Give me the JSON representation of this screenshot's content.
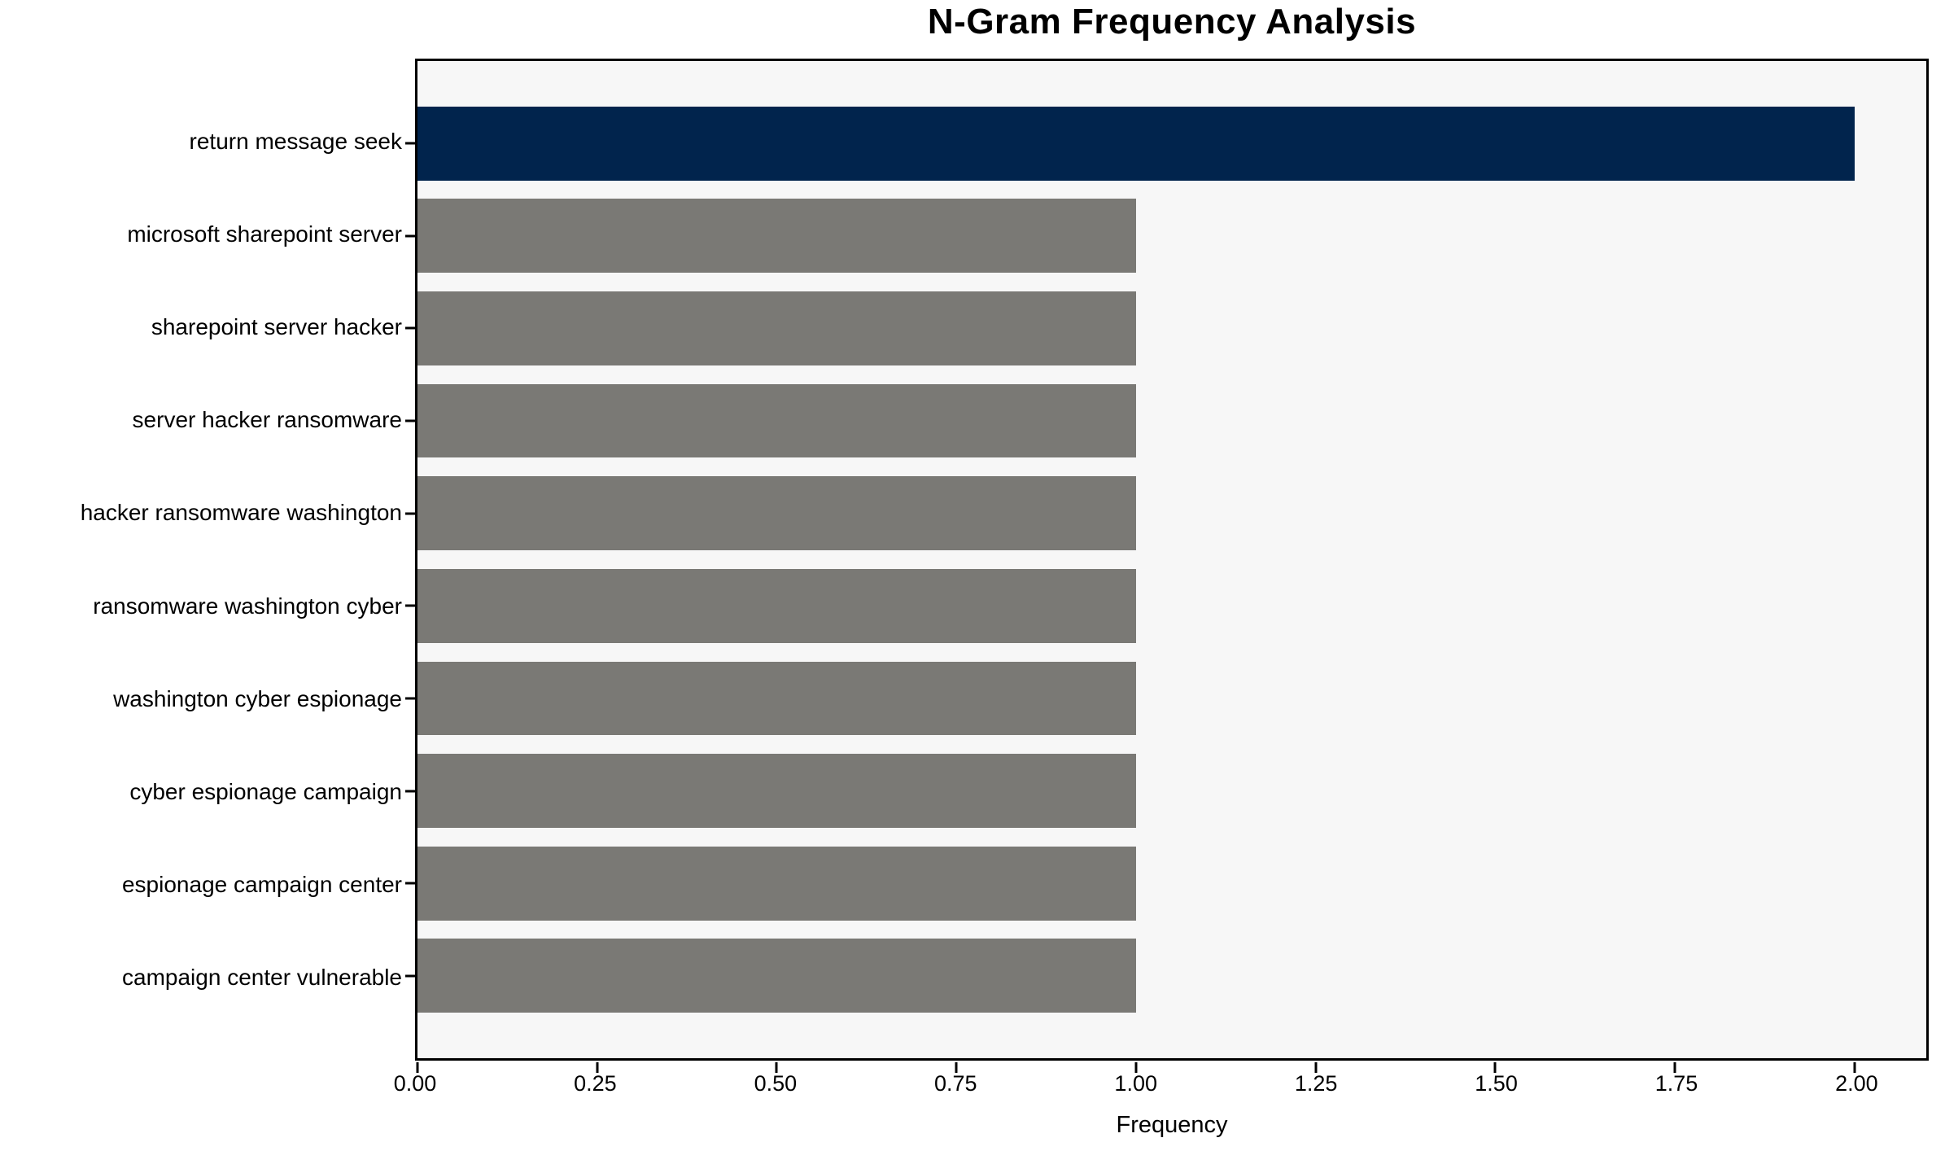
{
  "chart_data": {
    "type": "bar",
    "orientation": "horizontal",
    "title": "N-Gram Frequency Analysis",
    "categories": [
      "return message seek",
      "microsoft sharepoint server",
      "sharepoint server hacker",
      "server hacker ransomware",
      "hacker ransomware washington",
      "ransomware washington cyber",
      "washington cyber espionage",
      "cyber espionage campaign",
      "espionage campaign center",
      "campaign center vulnerable"
    ],
    "values": [
      2,
      1,
      1,
      1,
      1,
      1,
      1,
      1,
      1,
      1
    ],
    "highlight_index": 0,
    "xlabel": "Frequency",
    "ylabel": "",
    "xlim": [
      0,
      2.1
    ],
    "xtick_values": [
      0,
      0.25,
      0.5,
      0.75,
      1.0,
      1.25,
      1.5,
      1.75,
      2.0
    ],
    "xtick_labels": [
      "0.00",
      "0.25",
      "0.50",
      "0.75",
      "1.00",
      "1.25",
      "1.50",
      "1.75",
      "2.00"
    ],
    "bar_height_fraction": 0.8,
    "grid": false,
    "legend_position": "none",
    "colors": {
      "highlight_bar": "#01244D",
      "default_bar": "#7A7975",
      "plot_background": "#F7F7F7",
      "figure_background": "#FFFFFF",
      "spine": "#000000",
      "text": "#000000"
    }
  }
}
